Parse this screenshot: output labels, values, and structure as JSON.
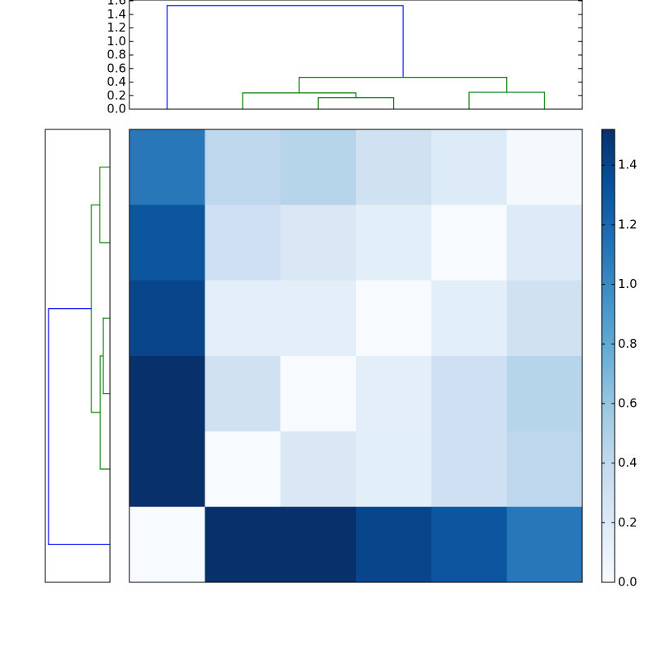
{
  "chart_data": [
    {
      "type": "dendrogram",
      "orientation": "top",
      "leaves": 6,
      "ylim": [
        0,
        1.6
      ],
      "yticks": [
        {
          "value": 0,
          "label": "0.0"
        },
        {
          "value": 0.2,
          "label": "0.2"
        },
        {
          "value": 0.4,
          "label": "0.4"
        },
        {
          "value": 0.6,
          "label": "0.6"
        },
        {
          "value": 0.8,
          "label": "0.8"
        },
        {
          "value": 1,
          "label": "1.0"
        },
        {
          "value": 1.2,
          "label": "1.2"
        },
        {
          "value": 1.4,
          "label": "1.4"
        },
        {
          "value": 1.6,
          "label": "1.6"
        }
      ],
      "links": [
        {
          "x": [
            2,
            2,
            3,
            3
          ],
          "y": [
            0,
            0.17,
            0.17,
            0
          ],
          "color": "#008000"
        },
        {
          "x": [
            1,
            1,
            2.5,
            2.5
          ],
          "y": [
            0,
            0.24,
            0.24,
            0.17
          ],
          "color": "#008000"
        },
        {
          "x": [
            4,
            4,
            5,
            5
          ],
          "y": [
            0,
            0.25,
            0.25,
            0
          ],
          "color": "#008000"
        },
        {
          "x": [
            1.75,
            1.75,
            4.5,
            4.5
          ],
          "y": [
            0.24,
            0.47,
            0.47,
            0.25
          ],
          "color": "#008000"
        },
        {
          "x": [
            0,
            0,
            3.125,
            3.125
          ],
          "y": [
            0,
            1.53,
            1.53,
            0.47
          ],
          "color": "#0000ff"
        }
      ]
    },
    {
      "type": "dendrogram",
      "orientation": "left",
      "leaves": 6,
      "xlim": [
        0,
        1.6
      ],
      "links": [
        {
          "x": [
            0,
            0,
            1,
            1
          ],
          "y": [
            0,
            0.25,
            0.25,
            0
          ],
          "color": "#008000"
        },
        {
          "x": [
            2,
            2,
            3,
            3
          ],
          "y": [
            0,
            0.17,
            0.17,
            0
          ],
          "color": "#008000"
        },
        {
          "x": [
            2.5,
            2.5,
            4,
            4
          ],
          "y": [
            0.17,
            0.24,
            0.24,
            0
          ],
          "color": "#008000"
        },
        {
          "x": [
            0.5,
            0.5,
            3.25,
            3.25
          ],
          "y": [
            0.25,
            0.46,
            0.46,
            0.24
          ],
          "color": "#008000"
        },
        {
          "x": [
            1.875,
            1.875,
            5,
            5
          ],
          "y": [
            0.46,
            1.52,
            1.52,
            0
          ],
          "color": "#0000ff"
        }
      ]
    },
    {
      "type": "heatmap",
      "values": [
        [
          1.1,
          0.42,
          0.45,
          0.3,
          0.2,
          0.02
        ],
        [
          1.3,
          0.32,
          0.22,
          0.16,
          0.0,
          0.2
        ],
        [
          1.4,
          0.15,
          0.15,
          0.0,
          0.16,
          0.3
        ],
        [
          1.52,
          0.3,
          0.0,
          0.15,
          0.32,
          0.45
        ],
        [
          1.52,
          0.0,
          0.22,
          0.16,
          0.32,
          0.42
        ],
        [
          0.0,
          1.52,
          1.52,
          1.4,
          1.3,
          1.1
        ]
      ],
      "colormap": [
        "#f7fbff",
        "#deebf7",
        "#c6dbef",
        "#9ecae1",
        "#6baed6",
        "#4292c6",
        "#2171b5",
        "#08519c",
        "#08306b"
      ],
      "clim": [
        0,
        1.52
      ],
      "cticks": [
        {
          "value": 0,
          "label": "0.0"
        },
        {
          "value": 0.2,
          "label": "0.2"
        },
        {
          "value": 0.4,
          "label": "0.4"
        },
        {
          "value": 0.6,
          "label": "0.6"
        },
        {
          "value": 0.8,
          "label": "0.8"
        },
        {
          "value": 1,
          "label": "1.0"
        },
        {
          "value": 1.2,
          "label": "1.2"
        },
        {
          "value": 1.4,
          "label": "1.4"
        }
      ]
    }
  ]
}
